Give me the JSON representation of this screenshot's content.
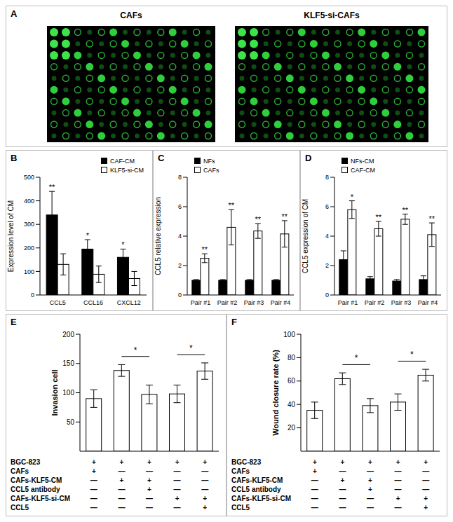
{
  "image_panel": {
    "title": "A",
    "images": [
      "CAFs",
      "KLF5-si-CAFs"
    ]
  },
  "chart_data": [
    {
      "type": "bar",
      "title": "B",
      "categories": [
        "CCL5",
        "CCL16",
        "CXCL12"
      ],
      "ylabel": "Expression level of CM",
      "ylim": [
        0,
        500
      ],
      "yticks": [
        0,
        100,
        200,
        300,
        400,
        500
      ],
      "legend": "top right",
      "series": [
        {
          "name": "CAF-CM",
          "color": "#000000",
          "values": [
            340,
            195,
            160
          ],
          "errors": [
            100,
            40,
            35
          ],
          "annotations": [
            "**",
            "*",
            "*"
          ]
        },
        {
          "name": "KLF5-si-CM",
          "color": "#ffffff",
          "values": [
            130,
            88,
            70
          ],
          "errors": [
            45,
            35,
            30
          ]
        }
      ]
    },
    {
      "type": "bar",
      "title": "C",
      "categories": [
        "Pair #1",
        "Pair #2",
        "Pair #3",
        "Pair #4"
      ],
      "ylabel": "CCL5 relative expression",
      "ylim": [
        0,
        8
      ],
      "yticks": [
        0,
        2,
        4,
        6,
        8
      ],
      "legend": "top left",
      "series": [
        {
          "name": "NFs",
          "color": "#000000",
          "values": [
            1,
            1,
            1,
            1
          ],
          "errors": [
            0.05,
            0.05,
            0.05,
            0.05
          ]
        },
        {
          "name": "CAFs",
          "color": "#ffffff",
          "values": [
            2.5,
            4.6,
            4.35,
            4.15
          ],
          "errors": [
            0.3,
            1.2,
            0.5,
            0.9
          ],
          "annotations": [
            "**",
            "**",
            "**",
            "**"
          ]
        }
      ]
    },
    {
      "type": "bar",
      "title": "D",
      "categories": [
        "Pair #1",
        "Pair #2",
        "Pair #3",
        "Pair #4"
      ],
      "ylabel": "CCL5 expression of CM",
      "ylim": [
        0,
        8
      ],
      "yticks": [
        0,
        2,
        4,
        6,
        8
      ],
      "legend": "top left",
      "series": [
        {
          "name": "NFs-CM",
          "color": "#000000",
          "values": [
            2.4,
            1.1,
            0.95,
            1.05
          ],
          "errors": [
            0.6,
            0.15,
            0.1,
            0.25
          ]
        },
        {
          "name": "CAF-CM",
          "color": "#ffffff",
          "values": [
            5.8,
            4.5,
            5.15,
            4.1
          ],
          "errors": [
            0.6,
            0.5,
            0.35,
            0.8
          ],
          "annotations": [
            "*",
            "**",
            "**",
            "**"
          ]
        }
      ]
    },
    {
      "type": "bar",
      "title": "E",
      "categories": [
        null,
        null,
        null,
        null,
        null
      ],
      "tick_labels": "y",
      "ylabel": "Invasion cell",
      "ylim": [
        0,
        200
      ],
      "yticks": [
        0,
        50,
        100,
        150,
        200
      ],
      "color": "#ffffff",
      "values": [
        90,
        138,
        97,
        98,
        137
      ],
      "errors": [
        15,
        10,
        16,
        15,
        14
      ],
      "comparisons": [
        {
          "between": [
            1,
            2
          ],
          "label": "*"
        },
        {
          "between": [
            3,
            4
          ],
          "label": "*"
        }
      ],
      "conditions": [
        {
          "label": "BGC-823",
          "marks": [
            "+",
            "+",
            "+",
            "+",
            "+"
          ]
        },
        {
          "label": "CAFs",
          "marks": [
            "+",
            "—",
            "—",
            "—",
            "—"
          ]
        },
        {
          "label": "CAFs-KLF5-CM",
          "marks": [
            "—",
            "+",
            "+",
            "—",
            "—"
          ]
        },
        {
          "label": "CCL5 antibody",
          "marks": [
            "—",
            "—",
            "+",
            "—",
            "—"
          ]
        },
        {
          "label": "CAFs-KLF5-si-CM",
          "marks": [
            "—",
            "—",
            "—",
            "+",
            "+"
          ]
        },
        {
          "label": "CCL5",
          "marks": [
            "—",
            "—",
            "—",
            "—",
            "+"
          ]
        }
      ]
    },
    {
      "type": "bar",
      "title": "F",
      "categories": [
        null,
        null,
        null,
        null,
        null
      ],
      "tick_labels": "y",
      "ylabel": "Wound closure rate (%)",
      "ylim": [
        0,
        100
      ],
      "yticks": [
        0,
        20,
        40,
        60,
        80,
        100
      ],
      "color": "#ffffff",
      "values": [
        35,
        62,
        39,
        42,
        65
      ],
      "errors": [
        7,
        5,
        6,
        7,
        5
      ],
      "comparisons": [
        {
          "between": [
            1,
            2
          ],
          "label": "*"
        },
        {
          "between": [
            3,
            4
          ],
          "label": "*"
        }
      ],
      "conditions": [
        {
          "label": "BGC-823",
          "marks": [
            "+",
            "+",
            "+",
            "+",
            "+"
          ]
        },
        {
          "label": "CAFs",
          "marks": [
            "+",
            "—",
            "—",
            "—",
            "—"
          ]
        },
        {
          "label": "CAFs-KLF5-CM",
          "marks": [
            "—",
            "+",
            "+",
            "—",
            "—"
          ]
        },
        {
          "label": "CCL5 antibody",
          "marks": [
            "—",
            "—",
            "+",
            "—",
            "—"
          ]
        },
        {
          "label": "CAFs-KLF5-si-CM",
          "marks": [
            "—",
            "—",
            "—",
            "+",
            "+"
          ]
        },
        {
          "label": "CCL5",
          "marks": [
            "—",
            "—",
            "—",
            "—",
            "+"
          ]
        }
      ]
    }
  ]
}
